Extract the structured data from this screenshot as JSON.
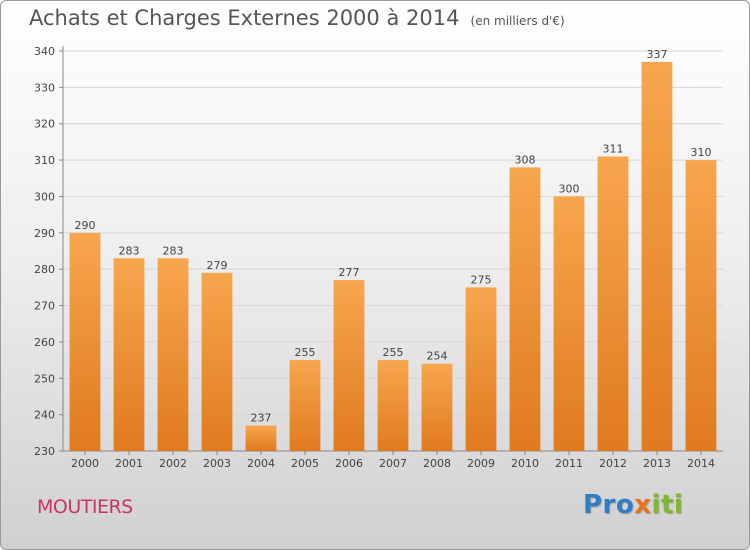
{
  "header": {
    "title": "Achats et Charges Externes 2000 à 2014",
    "subtitle": "(en milliers d'€)"
  },
  "footer": {
    "town": "MOUTIERS",
    "logo_parts": [
      "Pro",
      "x",
      "iti"
    ],
    "logo_colors": [
      "#2e7dc6",
      "#e8731a",
      "#7fb82a"
    ]
  },
  "colors": {
    "bar_light": "#f7a64e",
    "bar_dark": "#e07a1e",
    "town": "#cc3366"
  },
  "chart_data": {
    "type": "bar",
    "categories": [
      "2000",
      "2001",
      "2002",
      "2003",
      "2004",
      "2005",
      "2006",
      "2007",
      "2008",
      "2009",
      "2010",
      "2011",
      "2012",
      "2013",
      "2014"
    ],
    "values": [
      290,
      283,
      283,
      279,
      237,
      255,
      277,
      255,
      254,
      275,
      308,
      300,
      311,
      337,
      310
    ],
    "title": "Achats et Charges Externes 2000 à 2014",
    "subtitle": "(en milliers d'€)",
    "ylim": [
      230,
      340
    ],
    "yticks": [
      230,
      240,
      250,
      260,
      270,
      280,
      290,
      300,
      310,
      320,
      330,
      340
    ],
    "grid": true,
    "data_labels": true
  }
}
